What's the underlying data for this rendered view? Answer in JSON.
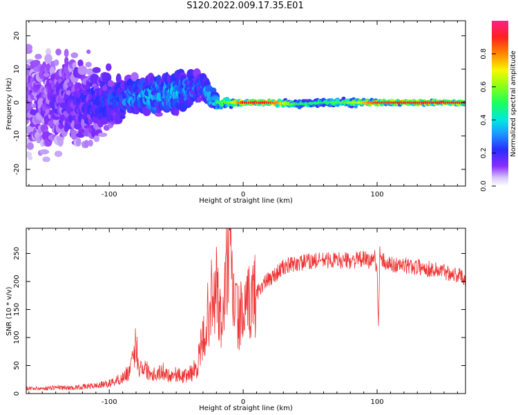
{
  "figure_title": "S120.2022.009.17.35.E01",
  "chart_data": [
    {
      "type": "heatmap",
      "title": "",
      "xlabel": "Height of straight line (km)",
      "ylabel": "Frequency (Hz)",
      "xlim": [
        -162,
        166
      ],
      "ylim": [
        -25,
        24.5
      ],
      "xticks": [
        -100,
        0,
        100
      ],
      "yticks": [
        -20,
        -10,
        0,
        10,
        20
      ],
      "colorbar": {
        "label": "Normalized spectral amplitude",
        "range": [
          0.0,
          1.0
        ],
        "ticks": [
          0.0,
          0.2,
          0.4,
          0.6,
          0.8
        ],
        "tick_labels": [
          "0.0",
          "0.2",
          "0.4",
          "0.6",
          "0.8"
        ],
        "colormap": "hsv-like (white/lavender, purple, blue, cyan, green, yellow, orange, red, magenta)"
      },
      "description_points": [
        {
          "x": -150,
          "f_center": 0,
          "f_spread": 20,
          "amplitude": 0.15
        },
        {
          "x": -120,
          "f_center": 0,
          "f_spread": 18,
          "amplitude": 0.2
        },
        {
          "x": -90,
          "f_center": 1,
          "f_spread": 8,
          "amplitude": 0.3
        },
        {
          "x": -75,
          "f_center": 2,
          "f_spread": 6,
          "amplitude": 0.4
        },
        {
          "x": -50,
          "f_center": 3,
          "f_spread": 8,
          "amplitude": 0.4
        },
        {
          "x": -30,
          "f_center": 5,
          "f_spread": 5,
          "amplitude": 0.3
        },
        {
          "x": -20,
          "f_center": 0,
          "f_spread": 3,
          "amplitude": 0.5
        },
        {
          "x": -10,
          "f_center": 0,
          "f_spread": 2,
          "amplitude": 0.6
        },
        {
          "x": 0,
          "f_center": 0,
          "f_spread": 1,
          "amplitude": 0.9
        },
        {
          "x": 20,
          "f_center": 0,
          "f_spread": 1,
          "amplitude": 0.9
        },
        {
          "x": 40,
          "f_center": -0.5,
          "f_spread": 1.5,
          "amplitude": 0.5
        },
        {
          "x": 60,
          "f_center": 0,
          "f_spread": 1.5,
          "amplitude": 0.5
        },
        {
          "x": 80,
          "f_center": 0,
          "f_spread": 1.5,
          "amplitude": 0.6
        },
        {
          "x": 100,
          "f_center": 0,
          "f_spread": 1,
          "amplitude": 0.9
        },
        {
          "x": 130,
          "f_center": 0,
          "f_spread": 1,
          "amplitude": 0.9
        },
        {
          "x": 160,
          "f_center": 0,
          "f_spread": 1,
          "amplitude": 0.9
        }
      ]
    },
    {
      "type": "line",
      "title": "",
      "xlabel": "Height of straight line (km)",
      "ylabel": "SNR (10 * v/v)",
      "xlim": [
        -162,
        166
      ],
      "ylim": [
        0,
        295
      ],
      "xticks": [
        -100,
        0,
        100
      ],
      "yticks": [
        0,
        50,
        100,
        150,
        200,
        250
      ],
      "color": "#ee3333",
      "series": [
        {
          "x": [
            -162,
            -150,
            -140,
            -130,
            -120,
            -110,
            -100,
            -90,
            -85,
            -82,
            -80,
            -78,
            -75,
            -70,
            -65,
            -60,
            -55,
            -50,
            -45,
            -40,
            -35,
            -30,
            -27,
            -24,
            -22,
            -20,
            -18,
            -16,
            -14,
            -12,
            -10,
            -8,
            -6,
            -4,
            -2,
            0,
            5,
            10,
            15,
            20,
            25,
            30,
            40,
            50,
            60,
            70,
            80,
            90,
            95,
            98,
            100,
            101,
            102,
            103,
            104,
            106,
            110,
            120,
            130,
            140,
            150,
            160,
            166
          ],
          "values": [
            10,
            9,
            11,
            10,
            12,
            14,
            18,
            28,
            40,
            60,
            95,
            45,
            50,
            38,
            35,
            40,
            32,
            35,
            30,
            35,
            45,
            95,
            130,
            170,
            150,
            200,
            140,
            120,
            165,
            230,
            250,
            180,
            160,
            135,
            140,
            130,
            165,
            180,
            195,
            205,
            215,
            225,
            232,
            236,
            238,
            238,
            237,
            240,
            235,
            245,
            225,
            110,
            250,
            230,
            240,
            232,
            230,
            228,
            226,
            222,
            218,
            212,
            205
          ]
        }
      ]
    }
  ]
}
